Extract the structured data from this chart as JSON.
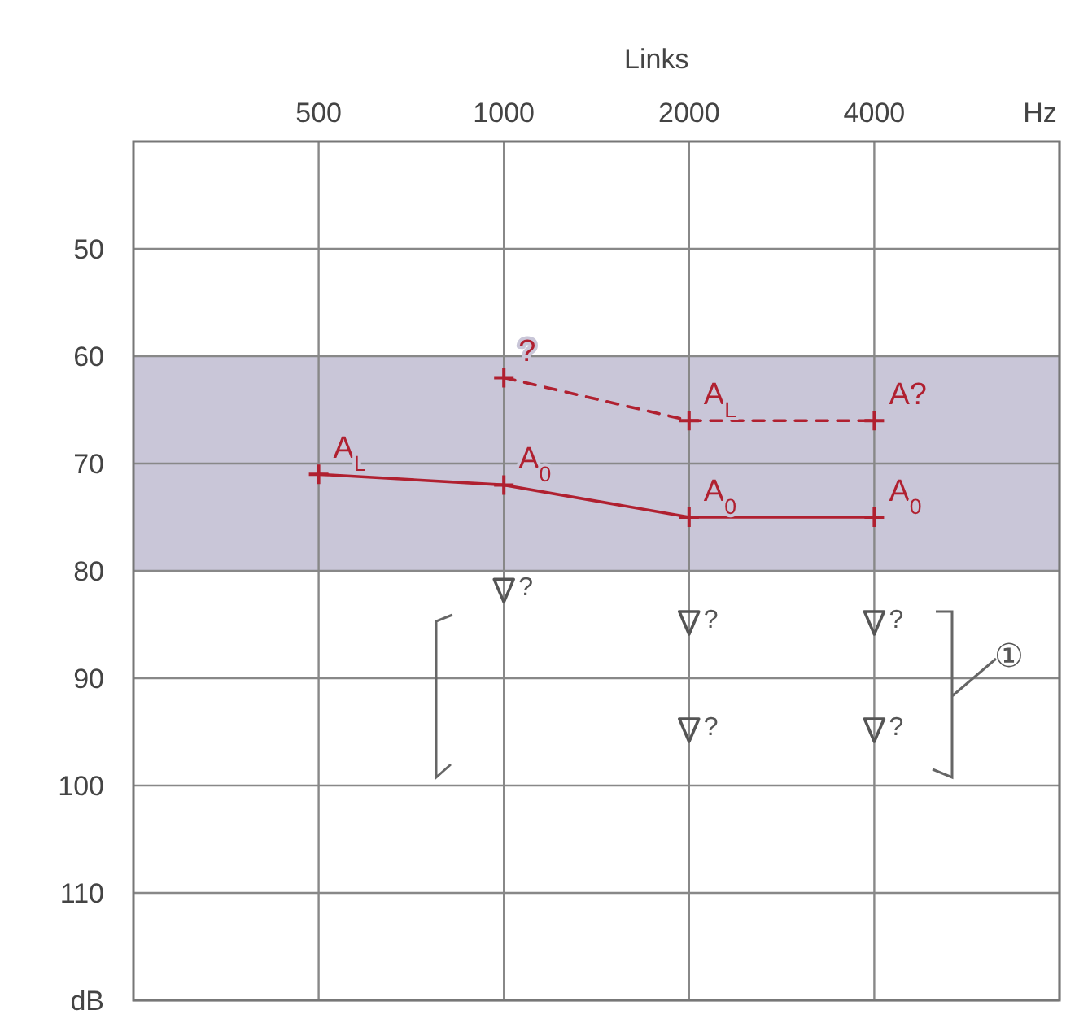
{
  "chart_data": {
    "type": "line",
    "xlabel": "Links",
    "log": "x",
    "xlim": [
      250,
      8000
    ],
    "xticks": [
      500,
      1000,
      2000,
      4000,
      {
        "value": 8000,
        "label": "Hz"
      }
    ],
    "ylim": [
      120,
      40
    ],
    "yticks": [
      50,
      60,
      70,
      80,
      90,
      100,
      110,
      {
        "value": 120,
        "label": "dB"
      }
    ],
    "grid": true,
    "marker": "cross",
    "bands": [
      {
        "axis": "y",
        "from": 60,
        "to": 80,
        "color": "#c9c6d8"
      }
    ],
    "series": [
      {
        "color": "#b02030",
        "x": [
          500,
          1000,
          2000,
          4000
        ],
        "values": [
          71,
          72,
          75,
          75
        ],
        "line_style": "solid"
      },
      {
        "color": "#b02030",
        "x": [
          1000,
          2000,
          4000
        ],
        "values": [
          62,
          66,
          66
        ],
        "line_style": "dashed"
      },
      {
        "type": "scatter",
        "marker": "triangle",
        "color": "#555555",
        "x": [
          1000,
          2000,
          2000,
          4000,
          4000
        ],
        "values": [
          82,
          85,
          95,
          85,
          95
        ]
      }
    ],
    "annotations": [
      {
        "text": "A$_{L}$",
        "x": 500,
        "y": 71
      },
      {
        "text": "A$_{0}$",
        "x": 1000,
        "y": 72
      },
      {
        "text": "A$_{0}$",
        "x": 2000,
        "y": 75
      },
      {
        "text": "A$_{0}$",
        "x": 4000,
        "y": 75
      },
      {
        "text": "?",
        "x": 1000,
        "y": 62
      },
      {
        "text": "A$_{L}$",
        "x": 2000,
        "y": 66
      },
      {
        "text": "A?",
        "x": 4000,
        "y": 66
      },
      {
        "text": "?",
        "x": 1000,
        "y": 82
      },
      {
        "text": "?",
        "x": 2000,
        "y": 85
      },
      {
        "text": "?",
        "x": 2000,
        "y": 95
      },
      {
        "text": "?",
        "x": 4000,
        "y": 85
      },
      {
        "text": "?",
        "x": 4000,
        "y": 95
      },
      "①"
    ]
  }
}
